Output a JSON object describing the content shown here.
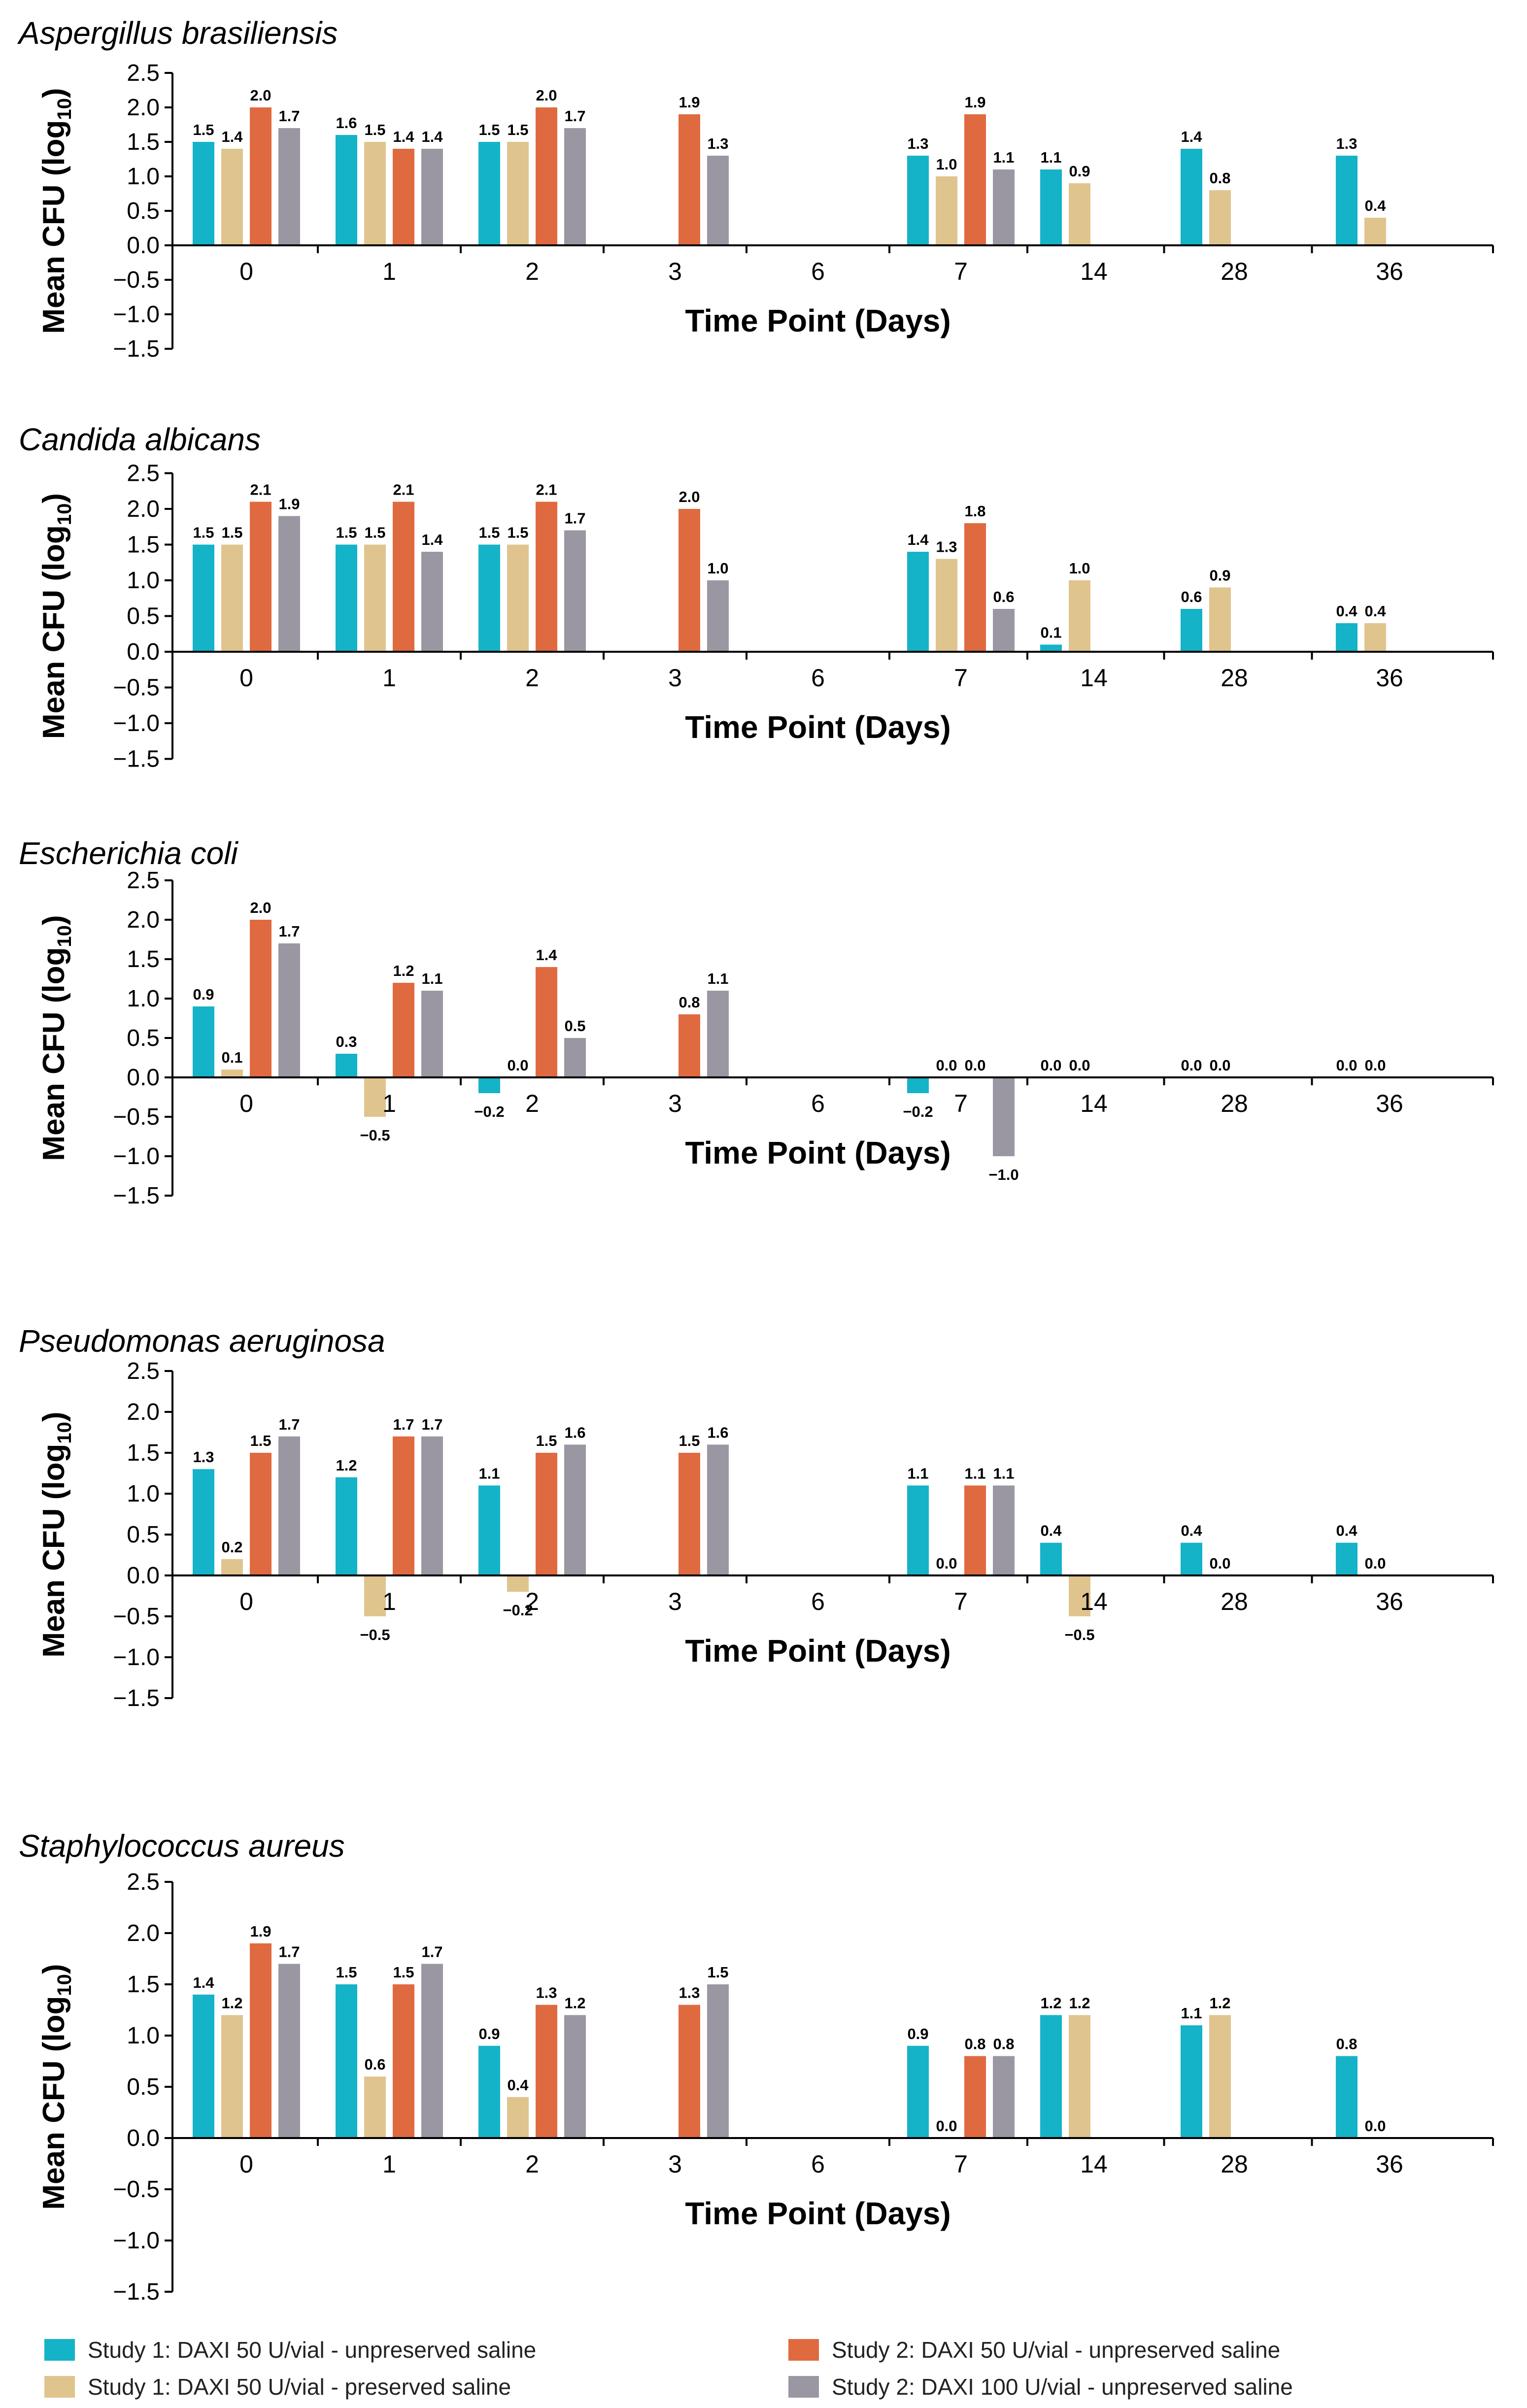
{
  "colors": {
    "study1_unpreserved": "#14b3c8",
    "study1_preserved": "#e0c48e",
    "study2_50": "#e06a3f",
    "study2_100": "#9b97a2",
    "axis": "#000000"
  },
  "legend": {
    "items": [
      {
        "key": "s1u",
        "label": "Study 1: DAXI 50 U/vial - unpreserved saline",
        "color": "#14b3c8"
      },
      {
        "key": "s1p",
        "label": "Study 1: DAXI 50 U/vial - preserved saline",
        "color": "#e0c48e"
      },
      {
        "key": "s2a",
        "label": "Study 2: DAXI 50 U/vial - unpreserved saline",
        "color": "#e06a3f"
      },
      {
        "key": "s2b",
        "label": "Study 2: DAXI 100 U/vial - unpreserved saline",
        "color": "#9b97a2"
      }
    ]
  },
  "chart_data": [
    {
      "type": "bar",
      "title": "Aspergillus brasiliensis",
      "xlabel": "Time Point (Days)",
      "ylabel": "Mean CFU (log10)",
      "ylim": [
        -1.5,
        2.5
      ],
      "yticks": [
        "2.5",
        "2.0",
        "1.5",
        "1.0",
        "0.5",
        "0.0",
        "−0.5",
        "−1.0",
        "−1.5"
      ],
      "categories": [
        "0",
        "1",
        "2",
        "3",
        "6",
        "7",
        "14",
        "28",
        "36"
      ],
      "series": [
        {
          "name": "Study 1: DAXI 50 U/vial - unpreserved saline",
          "values": [
            1.5,
            1.6,
            1.5,
            null,
            null,
            1.3,
            1.1,
            1.4,
            1.3
          ]
        },
        {
          "name": "Study 1: DAXI 50 U/vial - preserved saline",
          "values": [
            1.4,
            1.5,
            1.5,
            null,
            null,
            1.0,
            0.9,
            0.8,
            0.4
          ]
        },
        {
          "name": "Study 2: DAXI 50 U/vial - unpreserved saline",
          "values": [
            2.0,
            1.4,
            2.0,
            1.9,
            null,
            1.9,
            null,
            null,
            null
          ]
        },
        {
          "name": "Study 2: DAXI 100 U/vial - unpreserved saline",
          "values": [
            1.7,
            1.4,
            1.7,
            1.3,
            null,
            1.1,
            null,
            null,
            null
          ]
        }
      ]
    },
    {
      "type": "bar",
      "title": "Candida albicans",
      "xlabel": "Time Point (Days)",
      "ylabel": "Mean CFU (log10)",
      "ylim": [
        -1.5,
        2.5
      ],
      "yticks": [
        "2.5",
        "2.0",
        "1.5",
        "1.0",
        "0.5",
        "0.0",
        "−0.5",
        "−1.0",
        "−1.5"
      ],
      "categories": [
        "0",
        "1",
        "2",
        "3",
        "6",
        "7",
        "14",
        "28",
        "36"
      ],
      "series": [
        {
          "name": "Study 1: DAXI 50 U/vial - unpreserved saline",
          "values": [
            1.5,
            1.5,
            1.5,
            null,
            null,
            1.4,
            0.1,
            0.6,
            0.4
          ]
        },
        {
          "name": "Study 1: DAXI 50 U/vial - preserved saline",
          "values": [
            1.5,
            1.5,
            1.5,
            null,
            null,
            1.3,
            1.0,
            0.9,
            0.4
          ]
        },
        {
          "name": "Study 2: DAXI 50 U/vial - unpreserved saline",
          "values": [
            2.1,
            2.1,
            2.1,
            2.0,
            null,
            1.8,
            null,
            null,
            null
          ]
        },
        {
          "name": "Study 2: DAXI 100 U/vial - unpreserved saline",
          "values": [
            1.9,
            1.4,
            1.7,
            1.0,
            null,
            0.6,
            null,
            null,
            null
          ]
        }
      ]
    },
    {
      "type": "bar",
      "title": "Escherichia coli",
      "xlabel": "Time Point (Days)",
      "ylabel": "Mean CFU (log10)",
      "ylim": [
        -1.5,
        2.5
      ],
      "yticks": [
        "2.5",
        "2.0",
        "1.5",
        "1.0",
        "0.5",
        "0.0",
        "−0.5",
        "−1.0",
        "−1.5"
      ],
      "categories": [
        "0",
        "1",
        "2",
        "3",
        "6",
        "7",
        "14",
        "28",
        "36"
      ],
      "series": [
        {
          "name": "Study 1: DAXI 50 U/vial - unpreserved saline",
          "values": [
            0.9,
            0.3,
            -0.2,
            null,
            null,
            -0.2,
            0.0,
            0.0,
            0.0
          ]
        },
        {
          "name": "Study 1: DAXI 50 U/vial - preserved saline",
          "values": [
            0.1,
            -0.5,
            0.0,
            null,
            null,
            0.0,
            0.0,
            0.0,
            0.0
          ]
        },
        {
          "name": "Study 2: DAXI 50 U/vial - unpreserved saline",
          "values": [
            2.0,
            1.2,
            1.4,
            0.8,
            null,
            0.0,
            null,
            null,
            null
          ]
        },
        {
          "name": "Study 2: DAXI 100 U/vial - unpreserved saline",
          "values": [
            1.7,
            1.1,
            0.5,
            1.1,
            null,
            -1.0,
            null,
            null,
            null
          ]
        }
      ]
    },
    {
      "type": "bar",
      "title": "Pseudomonas aeruginosa",
      "xlabel": "Time Point (Days)",
      "ylabel": "Mean CFU (log10)",
      "ylim": [
        -1.5,
        2.5
      ],
      "yticks": [
        "2.5",
        "2.0",
        "1.5",
        "1.0",
        "0.5",
        "0.0",
        "−0.5",
        "−1.0",
        "−1.5"
      ],
      "categories": [
        "0",
        "1",
        "2",
        "3",
        "6",
        "7",
        "14",
        "28",
        "36"
      ],
      "series": [
        {
          "name": "Study 1: DAXI 50 U/vial - unpreserved saline",
          "values": [
            1.3,
            1.2,
            1.1,
            null,
            null,
            1.1,
            0.4,
            0.4,
            0.4
          ]
        },
        {
          "name": "Study 1: DAXI 50 U/vial - preserved saline",
          "values": [
            0.2,
            -0.5,
            -0.2,
            null,
            null,
            0.0,
            -0.5,
            0.0,
            0.0
          ]
        },
        {
          "name": "Study 2: DAXI 50 U/vial - unpreserved saline",
          "values": [
            1.5,
            1.7,
            1.5,
            1.5,
            null,
            1.1,
            null,
            null,
            null
          ]
        },
        {
          "name": "Study 2: DAXI 100 U/vial - unpreserved saline",
          "values": [
            1.7,
            1.7,
            1.6,
            1.6,
            null,
            1.1,
            null,
            null,
            null
          ]
        }
      ]
    },
    {
      "type": "bar",
      "title": "Staphylococcus aureus",
      "xlabel": "Time Point (Days)",
      "ylabel": "Mean CFU (log10)",
      "ylim": [
        -1.5,
        2.5
      ],
      "yticks": [
        "2.5",
        "2.0",
        "1.5",
        "1.0",
        "0.5",
        "0.0",
        "−0.5",
        "−1.0",
        "−1.5"
      ],
      "categories": [
        "0",
        "1",
        "2",
        "3",
        "6",
        "7",
        "14",
        "28",
        "36"
      ],
      "series": [
        {
          "name": "Study 1: DAXI 50 U/vial - unpreserved saline",
          "values": [
            1.4,
            1.5,
            0.9,
            null,
            null,
            0.9,
            1.2,
            1.1,
            0.8
          ]
        },
        {
          "name": "Study 1: DAXI 50 U/vial - preserved saline",
          "values": [
            1.2,
            0.6,
            0.4,
            null,
            null,
            0.0,
            1.2,
            1.2,
            0.0
          ]
        },
        {
          "name": "Study 2: DAXI 50 U/vial - unpreserved saline",
          "values": [
            1.9,
            1.5,
            1.3,
            1.3,
            null,
            0.8,
            null,
            null,
            null
          ]
        },
        {
          "name": "Study 2: DAXI 100 U/vial - unpreserved saline",
          "values": [
            1.7,
            1.7,
            1.2,
            1.5,
            null,
            0.8,
            null,
            null,
            null
          ]
        }
      ]
    }
  ]
}
